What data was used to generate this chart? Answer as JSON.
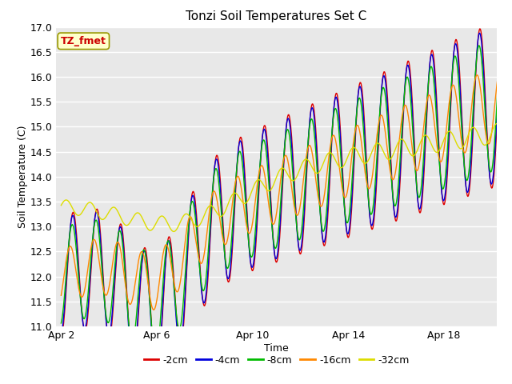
{
  "title": "Tonzi Soil Temperatures Set C",
  "xlabel": "Time",
  "ylabel": "Soil Temperature (C)",
  "ylim": [
    11.0,
    17.0
  ],
  "yticks": [
    11.0,
    11.5,
    12.0,
    12.5,
    13.0,
    13.5,
    14.0,
    14.5,
    15.0,
    15.5,
    16.0,
    16.5,
    17.0
  ],
  "xtick_labels": [
    "Apr 2",
    "Apr 6",
    "Apr 10",
    "Apr 14",
    "Apr 18"
  ],
  "xtick_positions": [
    0,
    4,
    8,
    12,
    16
  ],
  "legend_label": "TZ_fmet",
  "series_labels": [
    "-2cm",
    "-4cm",
    "-8cm",
    "-16cm",
    "-32cm"
  ],
  "series_colors": [
    "#dd0000",
    "#0000dd",
    "#00bb00",
    "#ff8800",
    "#dddd00"
  ],
  "plot_bg_color": "#e8e8e8",
  "grid_color": "#ffffff",
  "legend_box_facecolor": "#ffffcc",
  "legend_box_edgecolor": "#999900",
  "title_fontsize": 11,
  "axis_label_fontsize": 9,
  "tick_fontsize": 9,
  "annotation_fontsize": 9,
  "lw": 1.0
}
